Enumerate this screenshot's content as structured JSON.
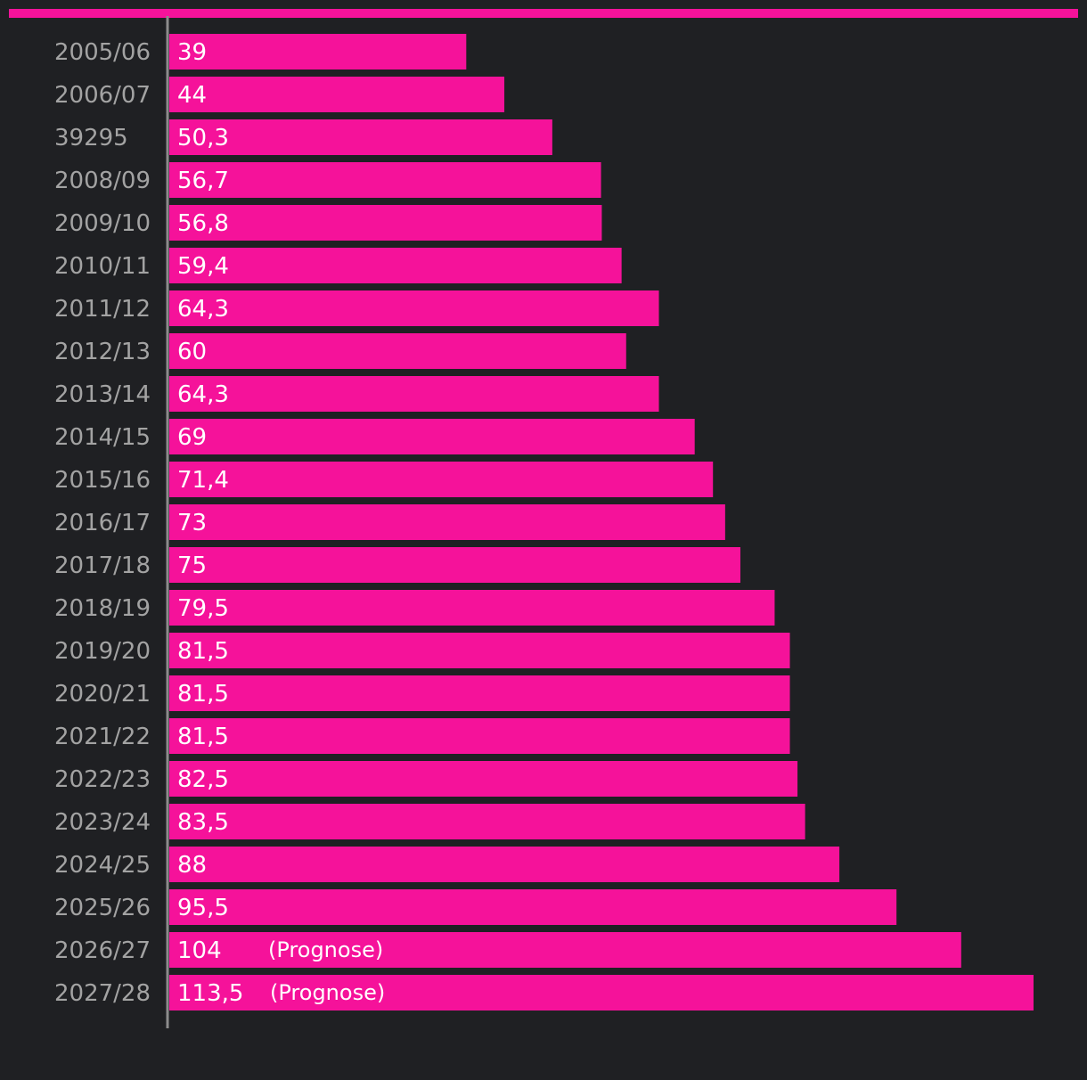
{
  "colors": {
    "background": "#1f2023",
    "bar": "#f5129a",
    "top_rule": "#f5129a",
    "axis": "#8c8c8c",
    "category_text": "#a3a3a3",
    "value_text": "#ffffff"
  },
  "chart_data": {
    "type": "bar",
    "orientation": "horizontal",
    "title": "",
    "xlabel": "",
    "ylabel": "",
    "grid": false,
    "categories": [
      "2005/06",
      "2006/07",
      "39295",
      "2008/09",
      "2009/10",
      "2010/11",
      "2011/12",
      "2012/13",
      "2013/14",
      "2014/15",
      "2015/16",
      "2016/17",
      "2017/18",
      "2018/19",
      "2019/20",
      "2020/21",
      "2021/22",
      "2022/23",
      "2023/24",
      "2024/25",
      "2025/26",
      "2026/27",
      "2027/28"
    ],
    "values": [
      39,
      44,
      50.3,
      56.7,
      56.8,
      59.4,
      64.3,
      60,
      64.3,
      69,
      71.4,
      73,
      75,
      79.5,
      81.5,
      81.5,
      81.5,
      82.5,
      83.5,
      88,
      95.5,
      104,
      113.5
    ],
    "value_labels": [
      "39",
      "44",
      "50,3",
      "56,7",
      "56,8",
      "59,4",
      "64,3",
      "60",
      "64,3",
      "69",
      "71,4",
      "73",
      "75",
      "79,5",
      "81,5",
      "81,5",
      "81,5",
      "82,5",
      "83,5",
      "88",
      "95,5",
      "104",
      "113,5"
    ],
    "annotations": [
      "",
      "",
      "",
      "",
      "",
      "",
      "",
      "",
      "",
      "",
      "",
      "",
      "",
      "",
      "",
      "",
      "",
      "",
      "",
      "",
      "",
      "(Prognose)",
      "(Prognose)"
    ],
    "xlim": [
      0,
      113.5
    ]
  }
}
